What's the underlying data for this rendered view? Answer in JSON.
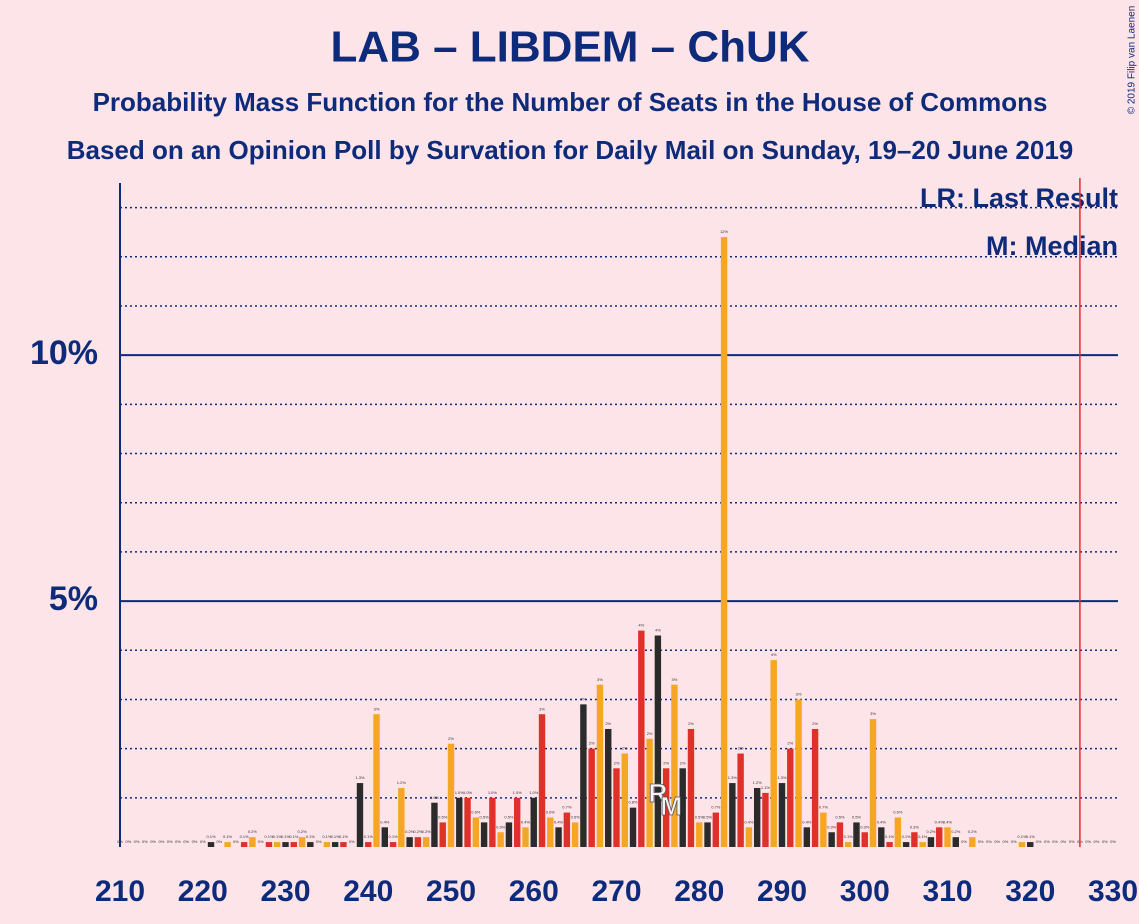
{
  "chart_data": {
    "type": "bar",
    "title": "LAB – LIBDEM – ChUK",
    "subtitle": "Probability Mass Function for the Number of Seats in the House of Commons",
    "subtitle2": "Based on an Opinion Poll by Survation for Daily Mail on Sunday, 19–20 June 2019",
    "copyright": "© 2019 Filip van Laenen",
    "legend": [
      "LR: Last Result",
      "M: Median"
    ],
    "x": [
      210,
      211,
      212,
      213,
      214,
      215,
      216,
      217,
      218,
      219,
      220,
      221,
      222,
      223,
      224,
      225,
      226,
      227,
      228,
      229,
      230,
      231,
      232,
      233,
      234,
      235,
      236,
      237,
      238,
      239,
      240,
      241,
      242,
      243,
      244,
      245,
      246,
      247,
      248,
      249,
      250,
      251,
      252,
      253,
      254,
      255,
      256,
      257,
      258,
      259,
      260,
      261,
      262,
      263,
      264,
      265,
      266,
      267,
      268,
      269,
      270,
      271,
      272,
      273,
      274,
      275,
      276,
      277,
      278,
      279,
      280,
      281,
      282,
      283,
      284,
      285,
      286,
      287,
      288,
      289,
      290,
      291,
      292,
      293,
      294,
      295,
      296,
      297,
      298,
      299,
      300,
      301,
      302,
      303,
      304,
      305,
      306,
      307,
      308,
      309,
      310,
      311,
      312,
      313,
      314,
      315,
      316,
      317,
      318,
      319,
      320,
      321,
      322,
      323,
      324,
      325,
      326,
      327,
      328,
      329,
      330
    ],
    "values": [
      0,
      0,
      0,
      0,
      0,
      0,
      0,
      0,
      0,
      0,
      0,
      0.1,
      0,
      0.1,
      0,
      0.1,
      0.2,
      0,
      0.1,
      0.1,
      0.1,
      0.1,
      0.2,
      0.1,
      0,
      0.1,
      0.1,
      0.1,
      0,
      1.3,
      0.1,
      2.7,
      0.4,
      0.1,
      1.2,
      0.2,
      0.2,
      0.2,
      0.9,
      0.5,
      2.1,
      1.0,
      1.0,
      0.6,
      0.5,
      1.0,
      0.3,
      0.5,
      1.0,
      0.4,
      1.0,
      2.7,
      0.6,
      0.4,
      0.7,
      0.5,
      2.9,
      2.0,
      3.3,
      2.4,
      1.6,
      1.9,
      0.8,
      4.4,
      2.2,
      4.3,
      1.6,
      3.3,
      1.6,
      2.4,
      0.5,
      0.5,
      0.7,
      12.4,
      1.3,
      1.9,
      0.4,
      1.2,
      1.1,
      3.8,
      1.3,
      2.0,
      3.0,
      0.4,
      2.4,
      0.7,
      0.3,
      0.5,
      0.1,
      0.5,
      0.3,
      2.6,
      0.4,
      0.1,
      0.6,
      0.1,
      0.3,
      0.1,
      0.2,
      0.4,
      0.4,
      0.2,
      0,
      0.2,
      0,
      0,
      0,
      0,
      0,
      0.1,
      0.1,
      0,
      0,
      0,
      0,
      0,
      0,
      0,
      0,
      0,
      0
    ],
    "value_labels": [
      "0%",
      "0%",
      "0%",
      "0%",
      "0%",
      "0%",
      "0%",
      "0%",
      "0%",
      "0%",
      "0%",
      "0.1%",
      "0%",
      "0.1%",
      "0%",
      "0.1%",
      "0.2%",
      "0%",
      "0.1%",
      "0.1%",
      "0.1%",
      "0.1%",
      "0.2%",
      "0.1%",
      "0%",
      "0.1%",
      "0.1%",
      "0.1%",
      "0%",
      "1.3%",
      "0.1%",
      "3%",
      "0.4%",
      "0.1%",
      "1.2%",
      "0.2%",
      "0.2%",
      "0.2%",
      "0.9%",
      "0.5%",
      "2%",
      "1.0%",
      "1.0%",
      "0.6%",
      "0.5%",
      "1.0%",
      "0.3%",
      "0.5%",
      "1.0%",
      "0.4%",
      "1.0%",
      "3%",
      "0.6%",
      "0.4%",
      "0.7%",
      "0.5%",
      "3%",
      "2%",
      "3%",
      "2%",
      "2%",
      "2%",
      "0.8%",
      "4%",
      "2%",
      "4%",
      "2%",
      "3%",
      "2%",
      "2%",
      "0.5%",
      "0.5%",
      "0.7%",
      "12%",
      "1.3%",
      "2%",
      "0.4%",
      "1.2%",
      "1.1%",
      "4%",
      "1.3%",
      "2%",
      "3%",
      "0.4%",
      "2%",
      "0.7%",
      "0.3%",
      "0.5%",
      "0.1%",
      "0.5%",
      "0.3%",
      "3%",
      "0.4%",
      "0.1%",
      "0.6%",
      "0.1%",
      "0.3%",
      "0.1%",
      "0.2%",
      "0.4%",
      "0.4%",
      "0.2%",
      "0%",
      "0.2%",
      "0%",
      "0%",
      "0%",
      "0%",
      "0%",
      "0.1%",
      "0.1%",
      "0%",
      "0%",
      "0%",
      "0%",
      "0%",
      "0%",
      "0%",
      "0%",
      "0%",
      "0%"
    ],
    "color_cycle": [
      "#e0302a",
      "#f5a623",
      "#2b2b2b"
    ],
    "xlim": [
      210,
      330
    ],
    "xticks": [
      210,
      220,
      230,
      240,
      250,
      260,
      270,
      280,
      290,
      300,
      310,
      320,
      330
    ],
    "ylim": [
      0,
      13.5
    ],
    "yticks": [
      {
        "value": 5,
        "label": "5%"
      },
      {
        "value": 10,
        "label": "10%"
      }
    ],
    "minor_yticks": [
      1,
      2,
      3,
      4,
      6,
      7,
      8,
      9,
      11,
      12,
      13
    ],
    "last_result": 326,
    "markers": [
      {
        "text": "R",
        "x": 275
      },
      {
        "text": "M",
        "x": 276
      }
    ]
  }
}
